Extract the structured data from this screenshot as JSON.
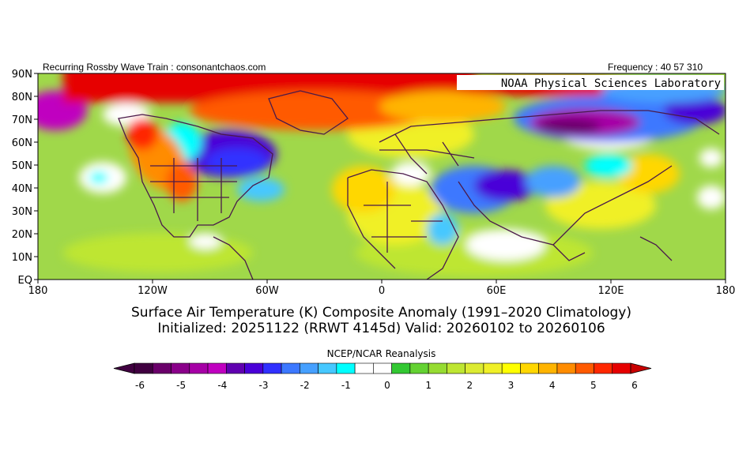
{
  "header": {
    "left": "Recurring Rossby Wave Train : consonantchaos.com",
    "right": "Frequency : 40 57 310",
    "lab": "NOAA Physical Sciences Laboratory"
  },
  "axes": {
    "y_ticks": [
      "90N",
      "80N",
      "70N",
      "60N",
      "50N",
      "40N",
      "30N",
      "20N",
      "10N",
      "EQ"
    ],
    "x_ticks": [
      "180",
      "120W",
      "60W",
      "0",
      "60E",
      "120E",
      "180"
    ]
  },
  "titles": {
    "line1": "Surface Air Temperature (K) Composite Anomaly (1991–2020 Climatology)",
    "line2": "Initialized: 20251122 (RRWT 4145d) Valid: 20260102 to 20260106"
  },
  "colorbar": {
    "title": "NCEP/NCAR Reanalysis",
    "labels": [
      "-6",
      "-5",
      "-4",
      "-3",
      "-2",
      "-1",
      "0",
      "1",
      "2",
      "3",
      "4",
      "5",
      "6"
    ],
    "colors": [
      "#400040",
      "#6a006a",
      "#8a008a",
      "#a600a6",
      "#c000c0",
      "#6000b0",
      "#4a00d8",
      "#3030ff",
      "#3c78ff",
      "#46a0ff",
      "#46c8ff",
      "#00ffff",
      "#ffffff",
      "#ffffff",
      "#32c832",
      "#64d232",
      "#96dc32",
      "#bee632",
      "#dceb32",
      "#f0f028",
      "#ffff00",
      "#ffd700",
      "#ffb400",
      "#ff8c00",
      "#ff5a00",
      "#ff2800",
      "#e60000"
    ],
    "arrow_left": "#400040",
    "arrow_right": "#c80000"
  },
  "colors": {
    "background_anomaly": "#a0d84a",
    "border_lines": "#4a1a4a"
  }
}
